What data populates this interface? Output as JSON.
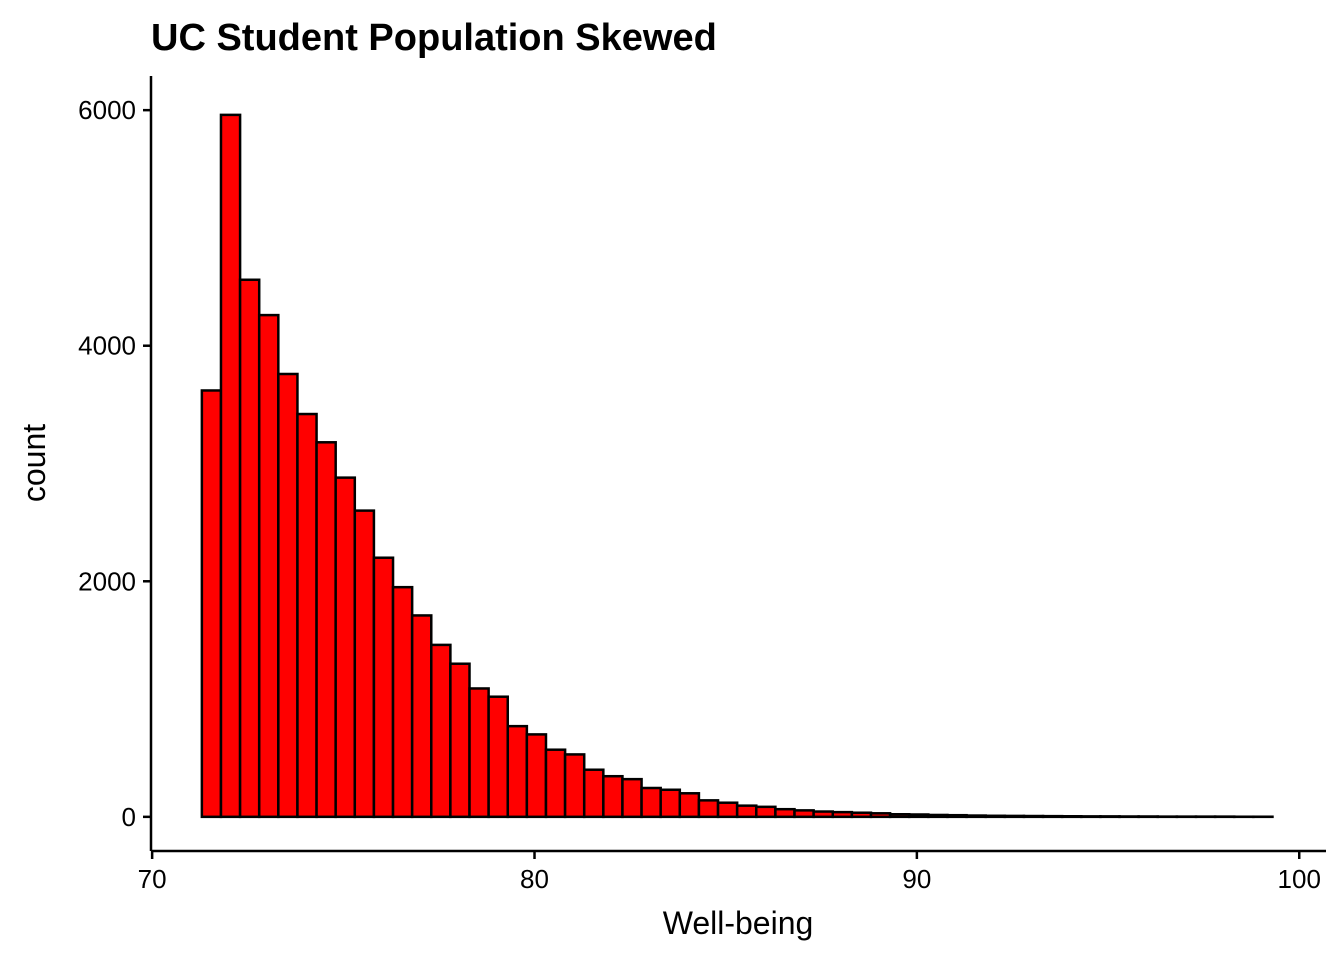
{
  "chart_data": {
    "type": "bar",
    "title": "UC Student Population Skewed",
    "xlabel": "Well-being",
    "ylabel": "count",
    "xlim": [
      69.97,
      100.7
    ],
    "ylim": [
      -290,
      6290
    ],
    "x_ticks": [
      70,
      80,
      90,
      100
    ],
    "y_ticks": [
      0,
      2000,
      4000,
      6000
    ],
    "bin_start": 71.3,
    "bin_width": 0.5,
    "values": [
      3620,
      5960,
      4560,
      4260,
      3760,
      3420,
      3180,
      2880,
      2600,
      2200,
      1950,
      1710,
      1460,
      1300,
      1090,
      1020,
      770,
      700,
      570,
      530,
      400,
      345,
      320,
      245,
      230,
      200,
      140,
      120,
      95,
      85,
      65,
      55,
      45,
      40,
      35,
      30,
      22,
      20,
      16,
      14,
      11,
      9,
      8,
      7,
      6,
      5,
      4,
      4,
      3,
      3,
      2,
      2,
      2,
      2,
      1,
      1
    ],
    "fill_color": "#ff0000",
    "outline_color": "#000000",
    "grid": false,
    "legend": "none"
  }
}
